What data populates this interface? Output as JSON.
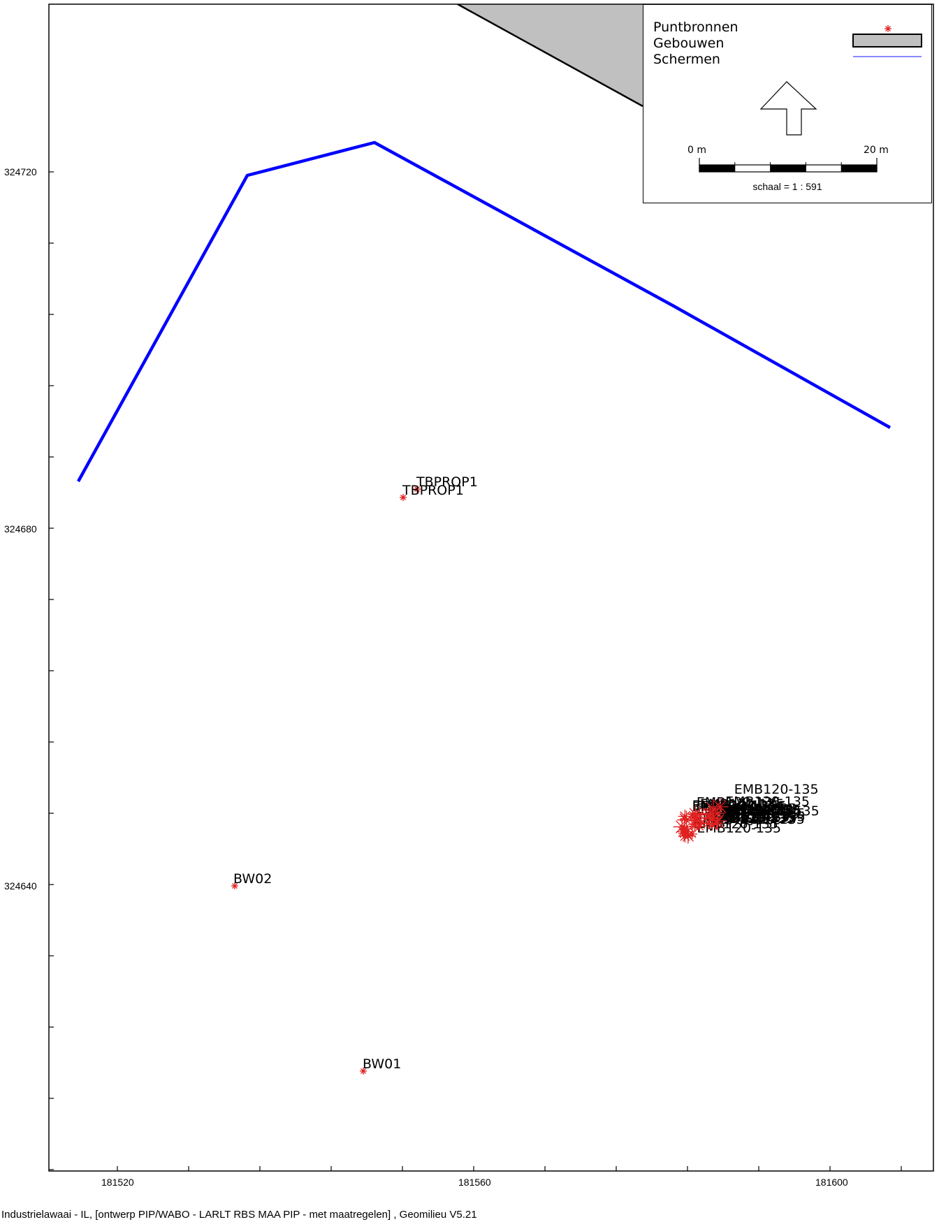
{
  "legend": {
    "items": [
      {
        "label": "Puntbronnen",
        "symbol": "red-asterisk-icon",
        "color": "#e02020"
      },
      {
        "label": "Gebouwen",
        "symbol": "grey-rectangle-icon",
        "color": "#c0c0c0"
      },
      {
        "label": "Schermen",
        "symbol": "blue-line-icon",
        "color": "#0000ff"
      }
    ],
    "scale_start": "0 m",
    "scale_end": "20 m",
    "scale_text": "schaal = 1 : 591",
    "north_arrow": "north-arrow-icon"
  },
  "axes": {
    "x_ticks": [
      "181520",
      "181560",
      "181600"
    ],
    "y_ticks": [
      "324720",
      "324680",
      "324640"
    ]
  },
  "sources": [
    {
      "label": "TBPROP1"
    },
    {
      "label": "TBPROP1"
    },
    {
      "label": "BW02"
    },
    {
      "label": "BW01"
    }
  ],
  "source_cluster_label": "EMB120-135",
  "colors": {
    "screen": "#0000ff",
    "source": "#e02020",
    "building": "#c0c0c0"
  },
  "footer": "Industrielawaai - IL, [ontwerp PIP/WABO - LARLT RBS MAA PIP - met maatregelen] , Geomilieu V5.21"
}
